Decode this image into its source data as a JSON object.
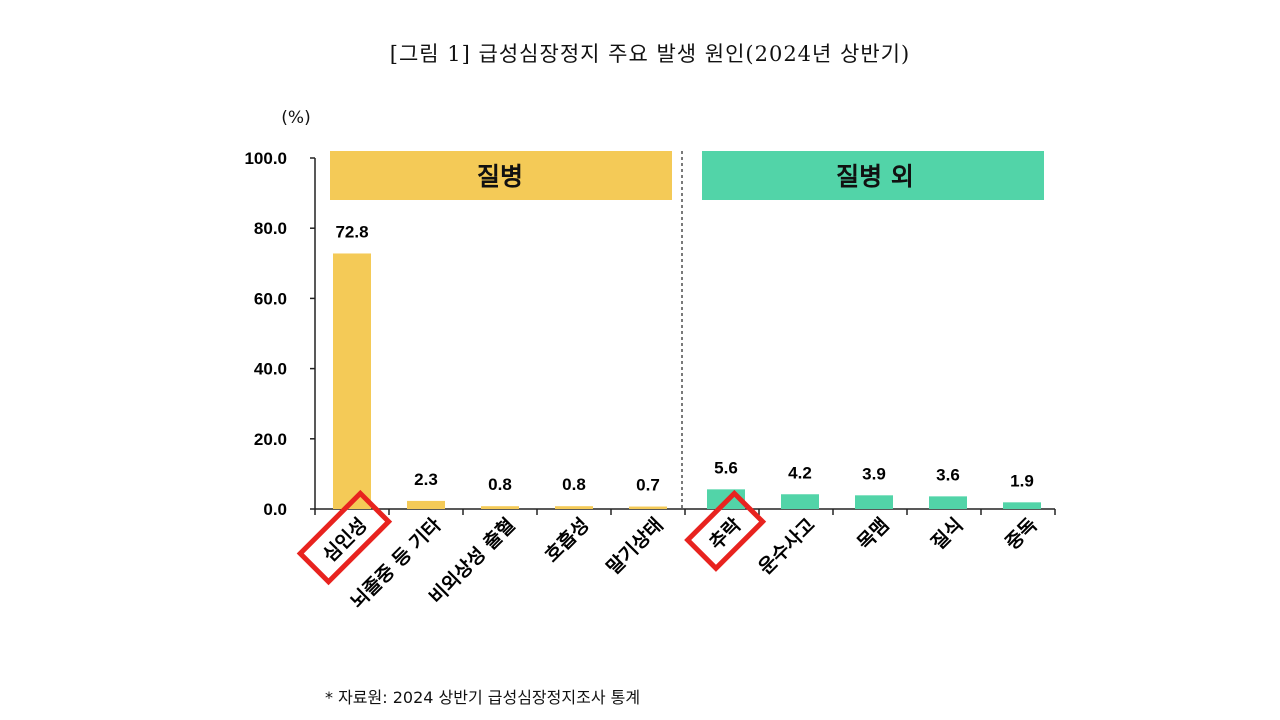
{
  "title": "[그림 1] 급성심장정지 주요 발생 원인(2024년 상반기)",
  "note": "* 자료원: 2024 상반기 급성심장정지조사 통계",
  "chart_data": {
    "type": "bar",
    "ylabel": "(%)",
    "ylim": [
      0,
      100
    ],
    "yticks": [
      "100.0",
      "80.0",
      "60.0",
      "40.0",
      "20.0",
      "0.0"
    ],
    "ytick_values": [
      100,
      80,
      60,
      40,
      20,
      0
    ],
    "categories": [
      "심인성",
      "뇌졸중 등 기타",
      "비외상성 출혈",
      "호흡성",
      "말기상태",
      "추락",
      "운수사고",
      "목맴",
      "질식",
      "중독"
    ],
    "values": [
      72.8,
      2.3,
      0.8,
      0.8,
      0.7,
      5.6,
      4.2,
      3.9,
      3.6,
      1.9
    ],
    "value_labels": [
      "72.8",
      "2.3",
      "0.8",
      "0.8",
      "0.7",
      "5.6",
      "4.2",
      "3.9",
      "3.6",
      "1.9"
    ],
    "groups": [
      {
        "name": "질병",
        "start": 0,
        "end": 4,
        "color": "#f4ca57"
      },
      {
        "name": "질병 외",
        "start": 5,
        "end": 9,
        "color": "#52d4a8"
      }
    ],
    "highlighted": [
      "심인성",
      "추락"
    ],
    "highlight_color": "#e8231f"
  }
}
